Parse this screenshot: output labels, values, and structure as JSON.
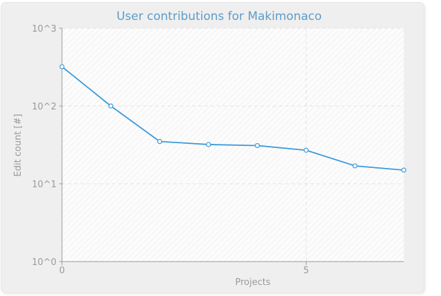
{
  "chart_data": {
    "type": "line",
    "title": "User contributions for Makimonaco",
    "xlabel": "Projects",
    "ylabel": "Edit count [#]",
    "x": [
      0,
      1,
      2,
      3,
      4,
      5,
      6,
      7
    ],
    "series": [
      {
        "values": [
          320,
          100,
          35,
          32,
          31,
          27,
          17,
          15
        ]
      }
    ],
    "xlim": [
      0,
      7
    ],
    "ylim": [
      1,
      1000
    ],
    "yscale": "log",
    "x_ticks": [
      0,
      5
    ],
    "y_ticks": [
      "10^0",
      "10^1",
      "10^2",
      "10^3"
    ],
    "grid": true,
    "colors": {
      "line": "#3a9ad9",
      "title": "#5b9cc9",
      "axis_text": "#9a9a9a"
    }
  }
}
